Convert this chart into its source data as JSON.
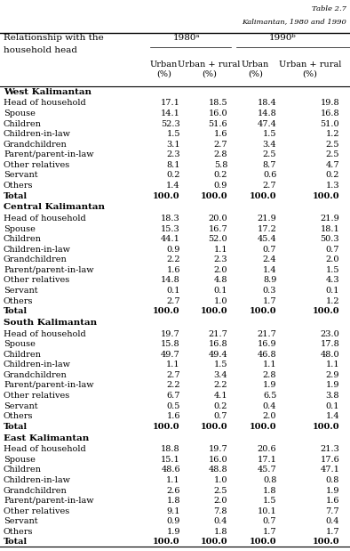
{
  "title_line1": "Relationship with the",
  "title_line2": "household head",
  "col_header1": "1980ᵃ",
  "col_header2": "1990ᵇ",
  "sub_headers": [
    "Urban\n(%)",
    "Urban + rural\n(%)",
    "Urban\n(%)",
    "Urban + rural\n(%)"
  ],
  "sections": [
    {
      "name": "West Kalimantan",
      "rows": [
        [
          "Head of household",
          "17.1",
          "18.5",
          "18.4",
          "19.8"
        ],
        [
          "Spouse",
          "14.1",
          "16.0",
          "14.8",
          "16.8"
        ],
        [
          "Children",
          "52.3",
          "51.6",
          "47.4",
          "51.0"
        ],
        [
          "Children-in-law",
          "1.5",
          "1.6",
          "1.5",
          "1.2"
        ],
        [
          "Grandchildren",
          "3.1",
          "2.7",
          "3.4",
          "2.5"
        ],
        [
          "Parent/parent-in-law",
          "2.3",
          "2.8",
          "2.5",
          "2.5"
        ],
        [
          "Other relatives",
          "8.1",
          "5.8",
          "8.7",
          "4.7"
        ],
        [
          "Servant",
          "0.2",
          "0.2",
          "0.6",
          "0.2"
        ],
        [
          "Others",
          "1.4",
          "0.9",
          "2.7",
          "1.3"
        ],
        [
          "Total",
          "100.0",
          "100.0",
          "100.0",
          "100.0"
        ]
      ]
    },
    {
      "name": "Central Kalimantan",
      "rows": [
        [
          "Head of household",
          "18.3",
          "20.0",
          "21.9",
          "21.9"
        ],
        [
          "Spouse",
          "15.3",
          "16.7",
          "17.2",
          "18.1"
        ],
        [
          "Children",
          "44.1",
          "52.0",
          "45.4",
          "50.3"
        ],
        [
          "Children-in-law",
          "0.9",
          "1.1",
          "0.7",
          "0.7"
        ],
        [
          "Grandchildren",
          "2.2",
          "2.3",
          "2.4",
          "2.0"
        ],
        [
          "Parent/parent-in-law",
          "1.6",
          "2.0",
          "1.4",
          "1.5"
        ],
        [
          "Other relatives",
          "14.8",
          "4.8",
          "8.9",
          "4.3"
        ],
        [
          "Servant",
          "0.1",
          "0.1",
          "0.3",
          "0.1"
        ],
        [
          "Others",
          "2.7",
          "1.0",
          "1.7",
          "1.2"
        ],
        [
          "Total",
          "100.0",
          "100.0",
          "100.0",
          "100.0"
        ]
      ]
    },
    {
      "name": "South Kalimantan",
      "rows": [
        [
          "Head of household",
          "19.7",
          "21.7",
          "21.7",
          "23.0"
        ],
        [
          "Spouse",
          "15.8",
          "16.8",
          "16.9",
          "17.8"
        ],
        [
          "Children",
          "49.7",
          "49.4",
          "46.8",
          "48.0"
        ],
        [
          "Children-in-law",
          "1.1",
          "1.5",
          "1.1",
          "1.1"
        ],
        [
          "Grandchildren",
          "2.7",
          "3.4",
          "2.8",
          "2.9"
        ],
        [
          "Parent/parent-in-law",
          "2.2",
          "2.2",
          "1.9",
          "1.9"
        ],
        [
          "Other relatives",
          "6.7",
          "4.1",
          "6.5",
          "3.8"
        ],
        [
          "Servant",
          "0.5",
          "0.2",
          "0.4",
          "0.1"
        ],
        [
          "Others",
          "1.6",
          "0.7",
          "2.0",
          "1.4"
        ],
        [
          "Total",
          "100.0",
          "100.0",
          "100.0",
          "100.0"
        ]
      ]
    },
    {
      "name": "East Kalimantan",
      "rows": [
        [
          "Head of household",
          "18.8",
          "19.7",
          "20.6",
          "21.3"
        ],
        [
          "Spouse",
          "15.1",
          "16.0",
          "17.1",
          "17.6"
        ],
        [
          "Children",
          "48.6",
          "48.8",
          "45.7",
          "47.1"
        ],
        [
          "Children-in-law",
          "1.1",
          "1.0",
          "0.8",
          "0.8"
        ],
        [
          "Grandchildren",
          "2.6",
          "2.5",
          "1.8",
          "1.9"
        ],
        [
          "Parent/parent-in-law",
          "1.8",
          "2.0",
          "1.5",
          "1.6"
        ],
        [
          "Other relatives",
          "9.1",
          "7.8",
          "10.1",
          "7.7"
        ],
        [
          "Servant",
          "0.9",
          "0.4",
          "0.7",
          "0.4"
        ],
        [
          "Others",
          "1.9",
          "1.8",
          "1.7",
          "1.7"
        ],
        [
          "Total",
          "100.0",
          "100.0",
          "100.0",
          "100.0"
        ]
      ]
    }
  ],
  "table_title": "Table 2.7",
  "table_subtitle": "Kalimantan, 1980 and 1990",
  "fontsize_data": 7.0,
  "fontsize_header": 7.5,
  "fontsize_title": 6.0
}
